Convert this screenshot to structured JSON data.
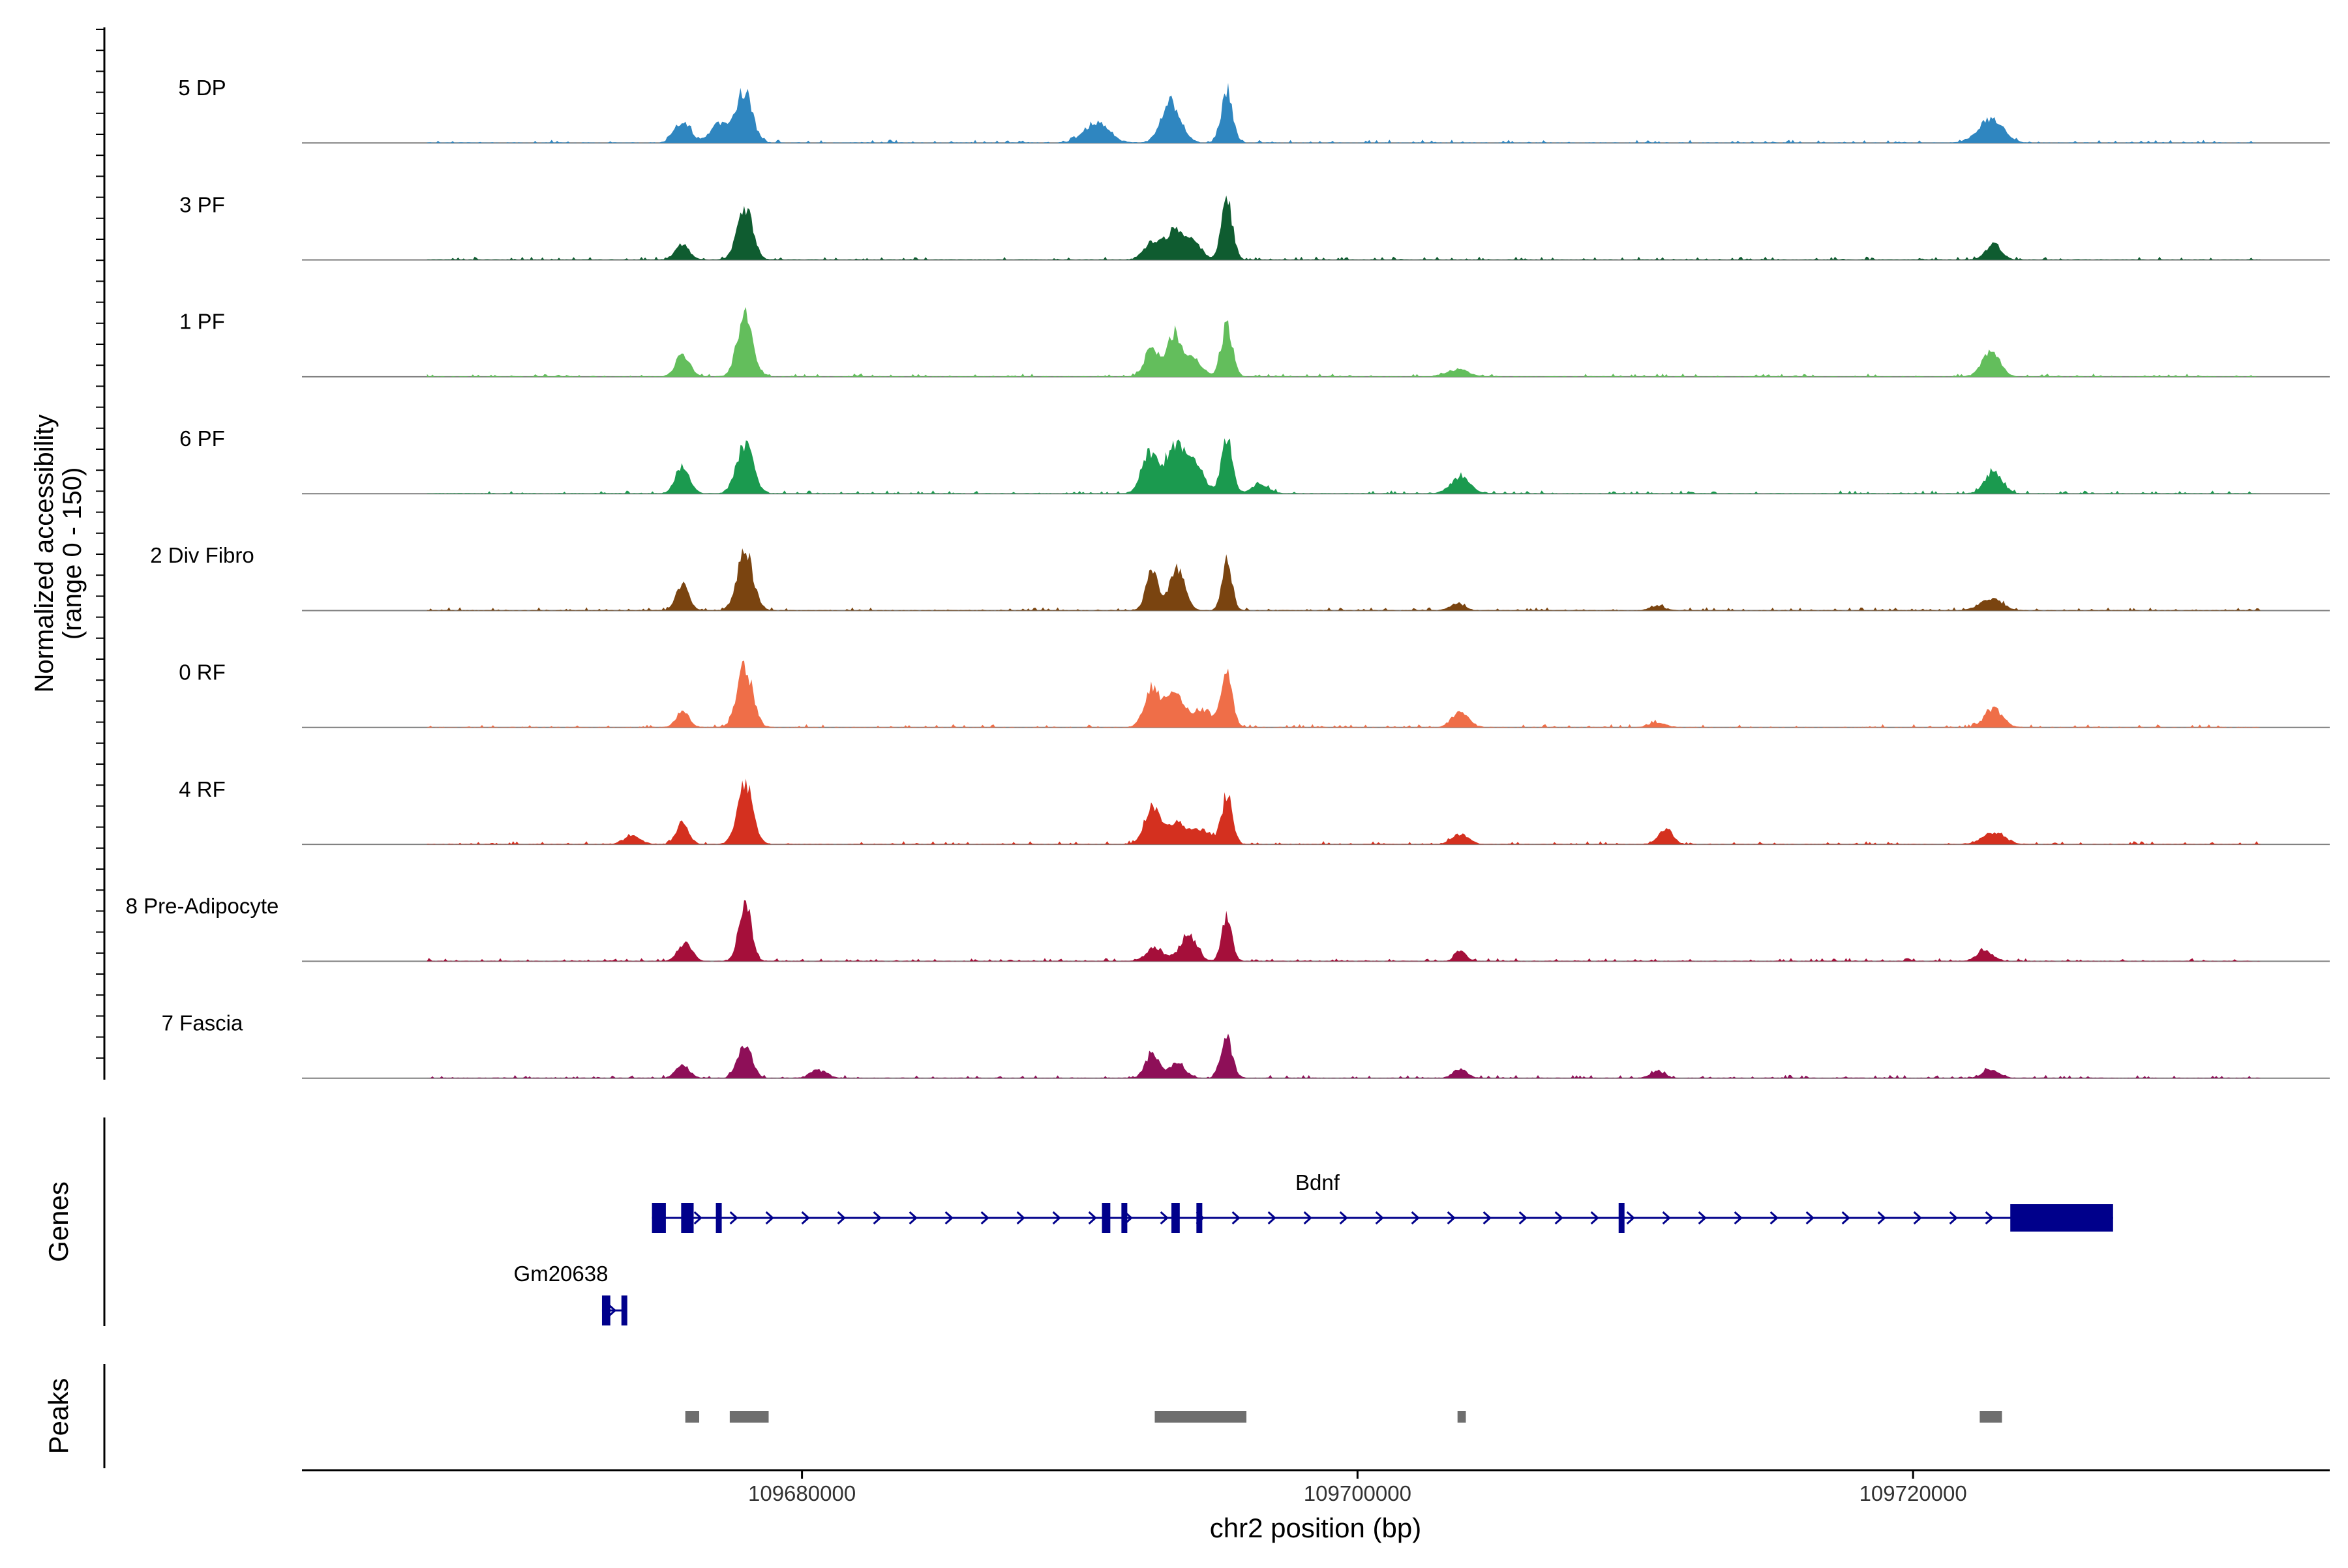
{
  "chart_data": {
    "type": "area",
    "title": "",
    "ylabel_line1": "Normalized accessibility",
    "ylabel_line2": "(range 0 - 150)",
    "xlabel": "chr2 position (bp)",
    "xlim": [
      109662000,
      109735000
    ],
    "ylim": [
      0,
      150
    ],
    "xticks": [
      {
        "value": 109680000,
        "label": "109680000"
      },
      {
        "value": 109700000,
        "label": "109700000"
      },
      {
        "value": 109720000,
        "label": "109720000"
      }
    ],
    "series": [
      {
        "name": "5 DP",
        "color": "#2F86C0",
        "peaks": [
          [
            109675700,
            55,
            280
          ],
          [
            109677000,
            48,
            320
          ],
          [
            109677900,
            130,
            300
          ],
          [
            109690600,
            50,
            450
          ],
          [
            109693300,
            100,
            350
          ],
          [
            109695300,
            130,
            200
          ],
          [
            109722800,
            58,
            450
          ]
        ]
      },
      {
        "name": "3 PF",
        "color": "#0F5C30",
        "peaks": [
          [
            109675700,
            38,
            250
          ],
          [
            109677950,
            128,
            280
          ],
          [
            109692600,
            38,
            300
          ],
          [
            109693400,
            72,
            350
          ],
          [
            109694100,
            40,
            300
          ],
          [
            109695300,
            150,
            200
          ],
          [
            109722900,
            38,
            280
          ]
        ]
      },
      {
        "name": "1 PF",
        "color": "#63BE5C",
        "peaks": [
          [
            109675700,
            55,
            250
          ],
          [
            109677950,
            150,
            280
          ],
          [
            109692600,
            75,
            250
          ],
          [
            109693400,
            108,
            250
          ],
          [
            109694100,
            45,
            300
          ],
          [
            109695300,
            130,
            200
          ],
          [
            109703600,
            18,
            400
          ],
          [
            109722800,
            62,
            320
          ]
        ]
      },
      {
        "name": "6 PF",
        "color": "#1B9A4F",
        "peaks": [
          [
            109675700,
            70,
            250
          ],
          [
            109677950,
            125,
            300
          ],
          [
            109692500,
            100,
            280
          ],
          [
            109693400,
            112,
            330
          ],
          [
            109694100,
            75,
            350
          ],
          [
            109695300,
            145,
            200
          ],
          [
            109696500,
            25,
            300
          ],
          [
            109703700,
            42,
            350
          ],
          [
            109722900,
            58,
            300
          ]
        ]
      },
      {
        "name": "2 Div Fibro",
        "color": "#7A4410",
        "peaks": [
          [
            109675700,
            62,
            230
          ],
          [
            109677950,
            150,
            280
          ],
          [
            109692600,
            95,
            220
          ],
          [
            109693500,
            102,
            280
          ],
          [
            109695300,
            123,
            180
          ],
          [
            109703600,
            18,
            250
          ],
          [
            109710800,
            12,
            250
          ],
          [
            109722800,
            30,
            400
          ]
        ]
      },
      {
        "name": "0 RF",
        "color": "#EF6E48",
        "peaks": [
          [
            109675700,
            42,
            230
          ],
          [
            109677950,
            150,
            280
          ],
          [
            109692600,
            97,
            280
          ],
          [
            109693400,
            88,
            300
          ],
          [
            109694400,
            45,
            400
          ],
          [
            109695300,
            135,
            200
          ],
          [
            109703700,
            40,
            300
          ],
          [
            109710800,
            12,
            300
          ],
          [
            109722900,
            47,
            320
          ]
        ]
      },
      {
        "name": "4 RF",
        "color": "#D4301F",
        "peaks": [
          [
            109673900,
            22,
            300
          ],
          [
            109675700,
            52,
            230
          ],
          [
            109677950,
            150,
            280
          ],
          [
            109692600,
            90,
            280
          ],
          [
            109693500,
            48,
            400
          ],
          [
            109694400,
            35,
            300
          ],
          [
            109695300,
            123,
            200
          ],
          [
            109703700,
            25,
            300
          ],
          [
            109711100,
            40,
            250
          ],
          [
            109722900,
            28,
            400
          ]
        ]
      },
      {
        "name": "8 Pre-Adipocyte",
        "color": "#A50F3A",
        "peaks": [
          [
            109675800,
            45,
            250
          ],
          [
            109677950,
            150,
            220
          ],
          [
            109692700,
            35,
            300
          ],
          [
            109693900,
            65,
            300
          ],
          [
            109695300,
            120,
            180
          ],
          [
            109703700,
            25,
            200
          ],
          [
            109722600,
            25,
            300
          ]
        ]
      },
      {
        "name": "7 Fascia",
        "color": "#8E0F58",
        "peaks": [
          [
            109675700,
            30,
            250
          ],
          [
            109677950,
            85,
            250
          ],
          [
            109680600,
            20,
            300
          ],
          [
            109692600,
            58,
            250
          ],
          [
            109693500,
            35,
            300
          ],
          [
            109695300,
            102,
            200
          ],
          [
            109703700,
            22,
            250
          ],
          [
            109710800,
            18,
            250
          ],
          [
            109722800,
            20,
            300
          ]
        ]
      }
    ],
    "genes": [
      {
        "name": "Bdnf",
        "strand": "+",
        "start": 109674600,
        "end": 109727200,
        "exons": [
          [
            109674600,
            109675100
          ],
          [
            109675650,
            109676100
          ],
          [
            109676900,
            109677000
          ],
          [
            109690800,
            109691100
          ],
          [
            109691500,
            109691600
          ],
          [
            109693300,
            109693600
          ],
          [
            109694200,
            109694400
          ],
          [
            109709400,
            109709600
          ],
          [
            109723500,
            109727200
          ]
        ]
      },
      {
        "name": "Gm20638",
        "strand": "+",
        "start": 109672800,
        "end": 109673700,
        "exons": [
          [
            109672800,
            109673100
          ],
          [
            109673500,
            109673700
          ]
        ]
      }
    ],
    "peaks_track": [
      [
        109675800,
        109676300
      ],
      [
        109677400,
        109678800
      ],
      [
        109692700,
        109696000
      ],
      [
        109703600,
        109703900
      ],
      [
        109722400,
        109723200
      ]
    ],
    "track_labels": {
      "genes": "Genes",
      "peaks": "Peaks"
    },
    "colors": {
      "axis": "#000000",
      "baseline": "#7F7F7F",
      "gene": "#00008B",
      "peak": "#6E6E6E"
    }
  }
}
